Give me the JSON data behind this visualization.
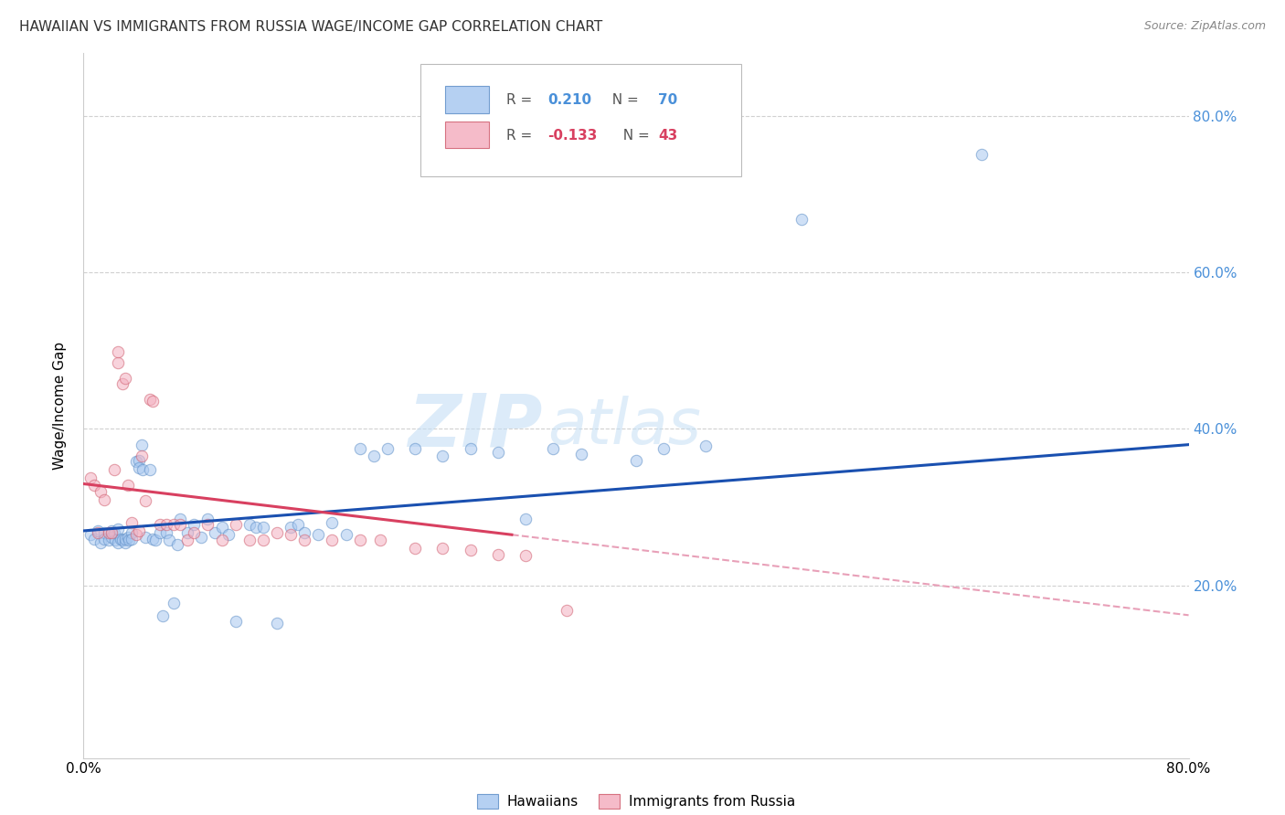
{
  "title": "HAWAIIAN VS IMMIGRANTS FROM RUSSIA WAGE/INCOME GAP CORRELATION CHART",
  "source": "Source: ZipAtlas.com",
  "ylabel": "Wage/Income Gap",
  "watermark": "ZIPatlas",
  "xlim": [
    0.0,
    0.8
  ],
  "ylim": [
    -0.02,
    0.88
  ],
  "hawaiians_color": "#a8c8f0",
  "immigrants_color": "#f4b0c0",
  "hawaiians_edge_color": "#6090c8",
  "immigrants_edge_color": "#d06070",
  "trendline_hawaiians_color": "#1a50b0",
  "trendline_immigrants_solid_color": "#d84060",
  "trendline_immigrants_dashed_color": "#e8a0b8",
  "R_hawaiians": 0.21,
  "N_hawaiians": 70,
  "R_immigrants": -0.133,
  "N_immigrants": 43,
  "legend_label_hawaiians": "Hawaiians",
  "legend_label_immigrants": "Immigrants from Russia",
  "hawaiians_x": [
    0.005,
    0.008,
    0.01,
    0.012,
    0.015,
    0.015,
    0.018,
    0.02,
    0.02,
    0.022,
    0.023,
    0.025,
    0.025,
    0.027,
    0.028,
    0.03,
    0.03,
    0.032,
    0.033,
    0.035,
    0.035,
    0.038,
    0.04,
    0.04,
    0.042,
    0.043,
    0.045,
    0.048,
    0.05,
    0.052,
    0.055,
    0.057,
    0.06,
    0.062,
    0.065,
    0.068,
    0.07,
    0.075,
    0.08,
    0.085,
    0.09,
    0.095,
    0.1,
    0.105,
    0.11,
    0.12,
    0.125,
    0.13,
    0.14,
    0.15,
    0.155,
    0.16,
    0.17,
    0.18,
    0.19,
    0.2,
    0.21,
    0.22,
    0.24,
    0.26,
    0.28,
    0.3,
    0.32,
    0.34,
    0.36,
    0.4,
    0.42,
    0.45,
    0.52,
    0.65
  ],
  "hawaiians_y": [
    0.265,
    0.26,
    0.27,
    0.255,
    0.268,
    0.26,
    0.258,
    0.27,
    0.262,
    0.268,
    0.258,
    0.272,
    0.255,
    0.26,
    0.258,
    0.255,
    0.26,
    0.262,
    0.258,
    0.268,
    0.26,
    0.358,
    0.36,
    0.35,
    0.38,
    0.348,
    0.262,
    0.348,
    0.26,
    0.258,
    0.268,
    0.162,
    0.268,
    0.258,
    0.178,
    0.252,
    0.285,
    0.268,
    0.278,
    0.262,
    0.285,
    0.268,
    0.275,
    0.265,
    0.155,
    0.278,
    0.275,
    0.275,
    0.152,
    0.275,
    0.278,
    0.268,
    0.265,
    0.28,
    0.265,
    0.375,
    0.365,
    0.375,
    0.375,
    0.365,
    0.375,
    0.37,
    0.285,
    0.375,
    0.368,
    0.36,
    0.375,
    0.378,
    0.668,
    0.75
  ],
  "immigrants_x": [
    0.005,
    0.008,
    0.01,
    0.012,
    0.015,
    0.018,
    0.02,
    0.022,
    0.025,
    0.025,
    0.028,
    0.03,
    0.032,
    0.035,
    0.038,
    0.04,
    0.042,
    0.045,
    0.048,
    0.05,
    0.055,
    0.06,
    0.065,
    0.07,
    0.075,
    0.08,
    0.09,
    0.1,
    0.11,
    0.12,
    0.13,
    0.14,
    0.15,
    0.16,
    0.18,
    0.2,
    0.215,
    0.24,
    0.26,
    0.28,
    0.3,
    0.32,
    0.35
  ],
  "immigrants_y": [
    0.338,
    0.328,
    0.268,
    0.32,
    0.31,
    0.268,
    0.268,
    0.348,
    0.485,
    0.498,
    0.458,
    0.465,
    0.328,
    0.28,
    0.265,
    0.27,
    0.365,
    0.308,
    0.438,
    0.435,
    0.278,
    0.278,
    0.278,
    0.278,
    0.258,
    0.268,
    0.278,
    0.258,
    0.278,
    0.258,
    0.258,
    0.268,
    0.265,
    0.258,
    0.258,
    0.258,
    0.258,
    0.248,
    0.248,
    0.245,
    0.24,
    0.238,
    0.168
  ],
  "background_color": "#ffffff",
  "grid_color": "#d0d0d0",
  "marker_size": 80,
  "marker_alpha": 0.55,
  "marker_linewidth": 0.8,
  "yticks": [
    0.2,
    0.4,
    0.6,
    0.8
  ],
  "ytick_labels_right": [
    "20.0%",
    "40.0%",
    "60.0%",
    "80.0%"
  ],
  "xticks": [
    0.0,
    0.8
  ],
  "xtick_labels": [
    "0.0%",
    "80.0%"
  ]
}
